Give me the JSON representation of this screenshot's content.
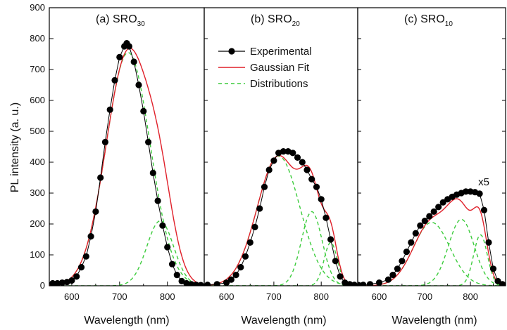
{
  "chart_data": {
    "type": "line",
    "ylabel": "PL intensity (a. u.)",
    "ylim": [
      0,
      900
    ],
    "yticks": [
      0,
      100,
      200,
      300,
      400,
      500,
      600,
      700,
      800,
      900
    ],
    "xticks": [
      600,
      700,
      800
    ],
    "legend": {
      "placement": "top-center",
      "entries": [
        "Experimental",
        "Gaussian Fit",
        "Distributions"
      ]
    },
    "colors": {
      "experimental": "#000000",
      "fit": "#e0202a",
      "distributions": "#3ccc3c"
    },
    "panels": [
      {
        "title_main": "(a) SRO",
        "title_sub": "30",
        "xlabel": "Wavelength (nm)",
        "xlim": [
          553,
          877
        ],
        "annotation": "",
        "series": [
          {
            "name": "Experimental",
            "x": [
              560,
              570,
              580,
              590,
              600,
              610,
              620,
              630,
              640,
              650,
              660,
              670,
              680,
              690,
              700,
              710,
              715,
              720,
              730,
              740,
              750,
              760,
              770,
              780,
              790,
              800,
              810,
              820,
              830,
              840,
              850,
              860,
              870
            ],
            "y": [
              8,
              8,
              10,
              12,
              17,
              30,
              60,
              95,
              160,
              240,
              350,
              465,
              570,
              665,
              740,
              775,
              785,
              775,
              725,
              650,
              565,
              465,
              365,
              275,
              195,
              125,
              70,
              35,
              15,
              8,
              5,
              3,
              2
            ]
          },
          {
            "name": "Gaussian Fit",
            "components": [
              {
                "center": 718,
                "sigma": 46,
                "amplitude": 755
              },
              {
                "center": 785,
                "sigma": 28,
                "amplitude": 210
              }
            ]
          }
        ]
      },
      {
        "title_main": "(b) SRO",
        "title_sub": "20",
        "xlabel": "Wavelength (nm)",
        "xlim": [
          553,
          877
        ],
        "annotation": "",
        "series": [
          {
            "name": "Experimental",
            "x": [
              560,
              580,
              600,
              610,
              620,
              630,
              640,
              650,
              660,
              670,
              680,
              690,
              700,
              710,
              720,
              730,
              740,
              750,
              760,
              770,
              780,
              790,
              800,
              810,
              820,
              830,
              840,
              850,
              860,
              870
            ],
            "y": [
              3,
              5,
              10,
              20,
              35,
              60,
              95,
              140,
              190,
              250,
              320,
              375,
              405,
              430,
              435,
              435,
              430,
              415,
              400,
              375,
              345,
              320,
              280,
              220,
              150,
              80,
              30,
              10,
              5,
              3
            ]
          },
          {
            "name": "Gaussian Fit",
            "components": [
              {
                "center": 710,
                "sigma": 45,
                "amplitude": 420
              },
              {
                "center": 780,
                "sigma": 22,
                "amplitude": 240
              },
              {
                "center": 820,
                "sigma": 14,
                "amplitude": 140
              }
            ]
          }
        ]
      },
      {
        "title_main": "(c) SRO",
        "title_sub": "10",
        "xlabel": "Wavelength (nm)",
        "xlim": [
          553,
          877
        ],
        "annotation": "x5",
        "series": [
          {
            "name": "Experimental",
            "x": [
              555,
              565,
              580,
              600,
              620,
              630,
              640,
              650,
              660,
              670,
              680,
              690,
              700,
              710,
              720,
              730,
              740,
              750,
              760,
              770,
              780,
              790,
              800,
              810,
              820,
              830,
              840,
              850,
              860,
              870
            ],
            "y": [
              2,
              3,
              5,
              10,
              20,
              35,
              55,
              80,
              110,
              140,
              170,
              195,
              210,
              225,
              240,
              255,
              270,
              280,
              288,
              295,
              300,
              305,
              305,
              303,
              298,
              245,
              140,
              55,
              15,
              5
            ]
          },
          {
            "name": "Gaussian Fit",
            "components": [
              {
                "center": 715,
                "sigma": 40,
                "amplitude": 205
              },
              {
                "center": 780,
                "sigma": 28,
                "amplitude": 215
              },
              {
                "center": 822,
                "sigma": 15,
                "amplitude": 165
              }
            ]
          }
        ]
      }
    ]
  }
}
